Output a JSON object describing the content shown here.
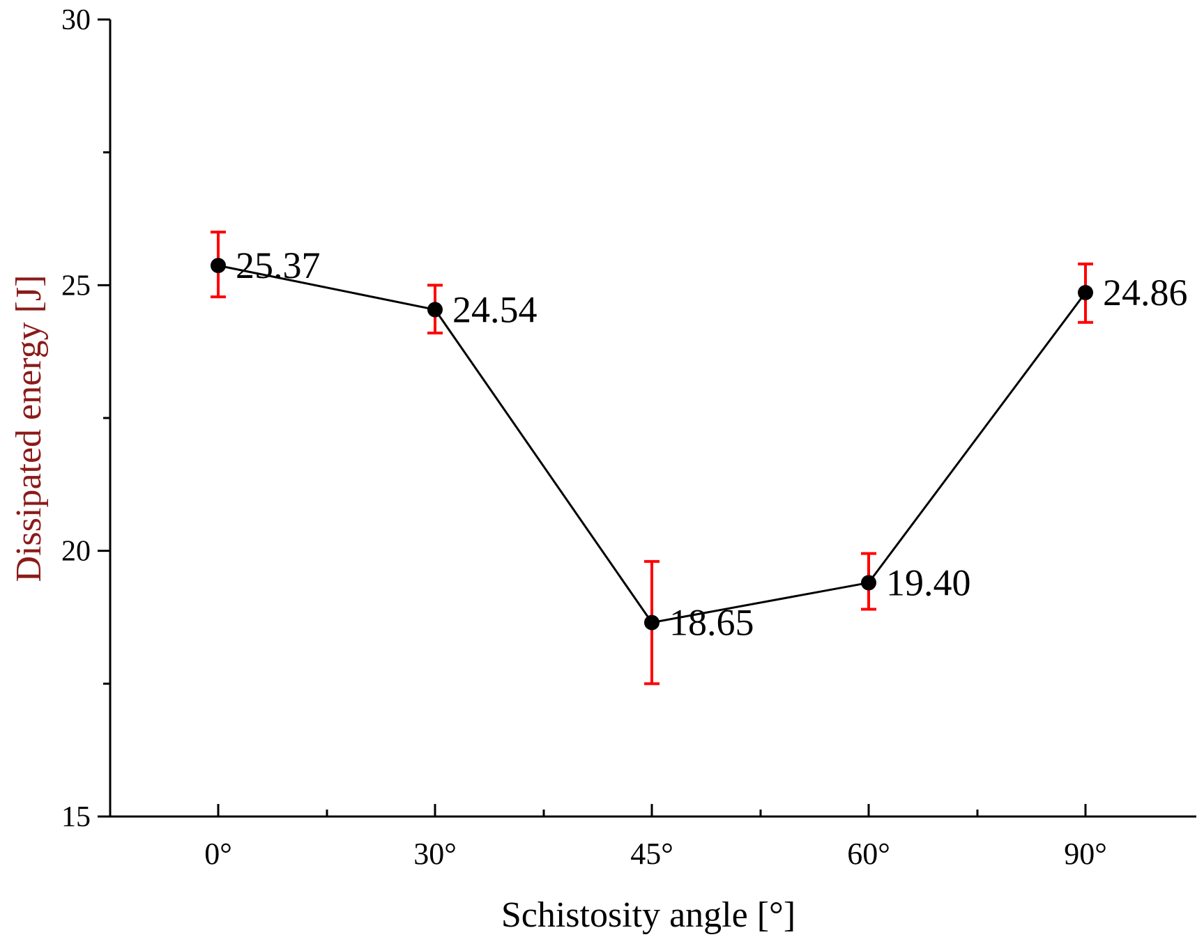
{
  "chart_data": {
    "type": "line",
    "title": "",
    "xlabel": "Schistosity angle [°]",
    "ylabel": "Dissipated energy [J]",
    "categories": [
      "0°",
      "30°",
      "45°",
      "60°",
      "90°"
    ],
    "series": [
      {
        "name": "Dissipated energy",
        "values": [
          25.37,
          24.54,
          18.65,
          19.4,
          24.86
        ],
        "value_labels": [
          "25.37",
          "24.54",
          "18.65",
          "19.40",
          "24.86"
        ],
        "error_low": [
          24.78,
          24.1,
          17.5,
          18.9,
          24.3
        ],
        "error_high": [
          26.0,
          25.0,
          19.8,
          19.95,
          25.4
        ]
      }
    ],
    "ylim": [
      15,
      30
    ],
    "yticks": [
      15,
      20,
      25,
      30
    ],
    "ytick_labels": [
      "15",
      "20",
      "25",
      "30"
    ],
    "grid": false,
    "legend": "none",
    "colors": {
      "line": "#000000",
      "marker": "#000000",
      "error_bar": "#ff0000",
      "axis": "#000000",
      "ylabel": "#8b1a1a",
      "xlabel": "#000000"
    }
  }
}
